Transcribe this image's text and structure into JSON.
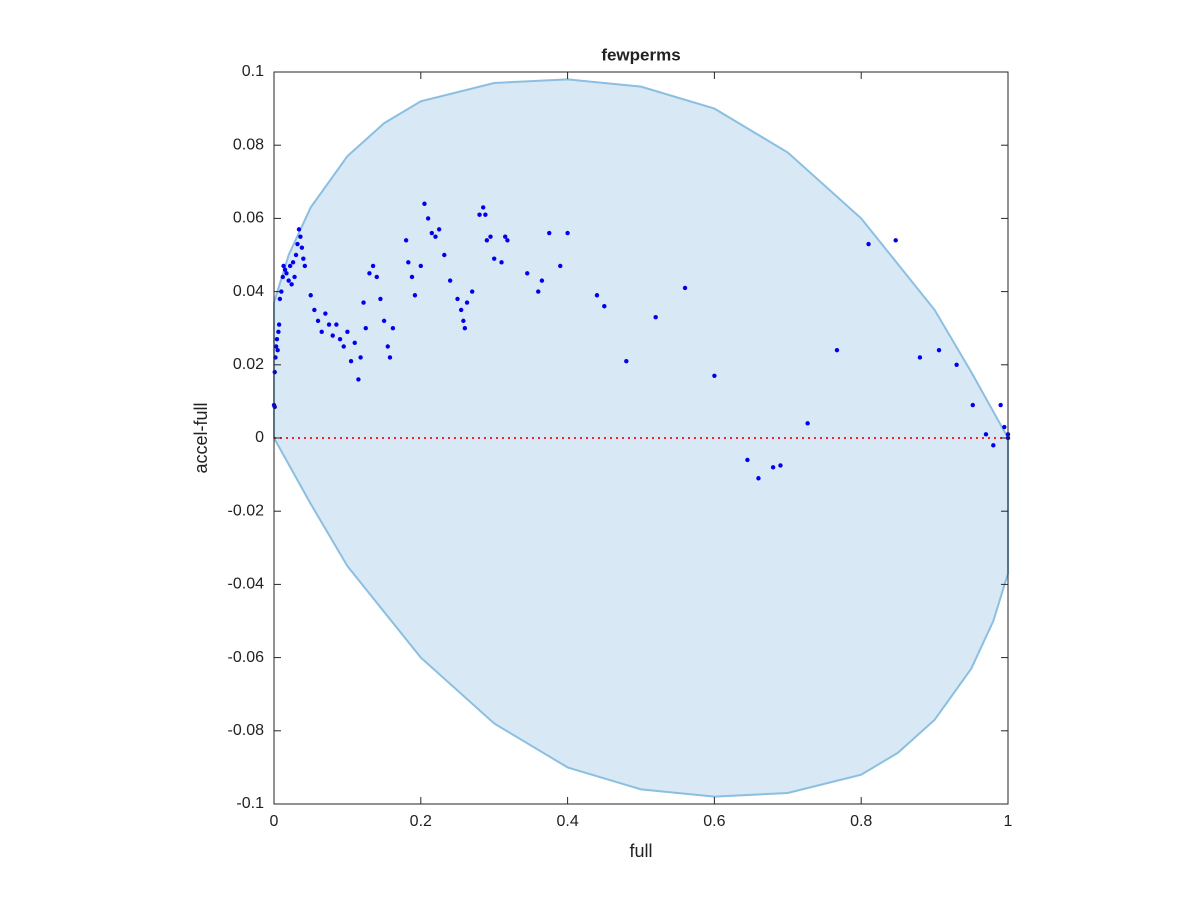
{
  "chart_data": {
    "type": "scatter",
    "title": "fewperms",
    "xlabel": "full",
    "ylabel": "accel-full",
    "xlim": [
      0,
      1
    ],
    "ylim": [
      -0.1,
      0.1
    ],
    "xticks": [
      0,
      0.2,
      0.4,
      0.6,
      0.8,
      1
    ],
    "yticks": [
      -0.1,
      -0.08,
      -0.06,
      -0.04,
      -0.02,
      0,
      0.02,
      0.04,
      0.06,
      0.08,
      0.1
    ],
    "grid": false,
    "color": "#0000ee",
    "reference_line": {
      "y": 0,
      "color": "#ff2222",
      "style": "dotted"
    },
    "region": {
      "color": "#d9e8f5",
      "edge_color": "#8bbfe0",
      "x": [
        0,
        0.02,
        0.05,
        0.1,
        0.15,
        0.2,
        0.3,
        0.4,
        0.5,
        0.6,
        0.7,
        0.8,
        0.9,
        0.95,
        1,
        1,
        0.98,
        0.95,
        0.9,
        0.85,
        0.8,
        0.7,
        0.6,
        0.5,
        0.4,
        0.3,
        0.2,
        0.1,
        0.05,
        0
      ],
      "y": [
        0.037,
        0.05,
        0.063,
        0.077,
        0.086,
        0.092,
        0.097,
        0.098,
        0.096,
        0.09,
        0.078,
        0.06,
        0.035,
        0.018,
        0,
        -0.037,
        -0.05,
        -0.063,
        -0.077,
        -0.086,
        -0.092,
        -0.097,
        -0.098,
        -0.096,
        -0.09,
        -0.078,
        -0.06,
        -0.035,
        -0.018,
        0
      ]
    },
    "x": [
      0,
      0.001,
      0.001,
      0.002,
      0.003,
      0.004,
      0.005,
      0.006,
      0.007,
      0.008,
      0.01,
      0.012,
      0.013,
      0.015,
      0.017,
      0.02,
      0.022,
      0.024,
      0.026,
      0.028,
      0.03,
      0.032,
      0.034,
      0.036,
      0.038,
      0.04,
      0.042,
      0.05,
      0.055,
      0.06,
      0.065,
      0.07,
      0.075,
      0.08,
      0.085,
      0.09,
      0.095,
      0.1,
      0.105,
      0.11,
      0.115,
      0.118,
      0.122,
      0.125,
      0.13,
      0.135,
      0.14,
      0.145,
      0.15,
      0.155,
      0.158,
      0.162,
      0.18,
      0.183,
      0.188,
      0.192,
      0.2,
      0.205,
      0.21,
      0.215,
      0.22,
      0.225,
      0.232,
      0.24,
      0.25,
      0.255,
      0.258,
      0.26,
      0.263,
      0.27,
      0.28,
      0.285,
      0.288,
      0.29,
      0.295,
      0.3,
      0.31,
      0.315,
      0.318,
      0.345,
      0.36,
      0.365,
      0.375,
      0.39,
      0.4,
      0.44,
      0.45,
      0.48,
      0.52,
      0.56,
      0.6,
      0.645,
      0.66,
      0.68,
      0.69,
      0.727,
      0.767,
      0.81,
      0.847,
      0.88,
      0.906,
      0.93,
      0.952,
      0.97,
      0.98,
      0.99,
      0.995,
      1,
      1
    ],
    "values": [
      0.009,
      0.0085,
      0.018,
      0.022,
      0.025,
      0.027,
      0.024,
      0.029,
      0.031,
      0.038,
      0.04,
      0.044,
      0.047,
      0.046,
      0.045,
      0.043,
      0.047,
      0.042,
      0.048,
      0.044,
      0.05,
      0.053,
      0.057,
      0.055,
      0.052,
      0.049,
      0.047,
      0.039,
      0.035,
      0.032,
      0.029,
      0.034,
      0.031,
      0.028,
      0.031,
      0.027,
      0.025,
      0.029,
      0.021,
      0.026,
      0.016,
      0.022,
      0.037,
      0.03,
      0.045,
      0.047,
      0.044,
      0.038,
      0.032,
      0.025,
      0.022,
      0.03,
      0.054,
      0.048,
      0.044,
      0.039,
      0.047,
      0.064,
      0.06,
      0.056,
      0.055,
      0.057,
      0.05,
      0.043,
      0.038,
      0.035,
      0.032,
      0.03,
      0.037,
      0.04,
      0.061,
      0.063,
      0.061,
      0.054,
      0.055,
      0.049,
      0.048,
      0.055,
      0.054,
      0.045,
      0.04,
      0.043,
      0.056,
      0.047,
      0.056,
      0.039,
      0.036,
      0.021,
      0.033,
      0.041,
      0.017,
      -0.006,
      -0.011,
      -0.008,
      -0.0075,
      0.004,
      0.024,
      0.053,
      0.054,
      0.022,
      0.024,
      0.02,
      0.009,
      0.001,
      -0.002,
      0.009,
      0.003,
      0.001,
      0
    ]
  }
}
